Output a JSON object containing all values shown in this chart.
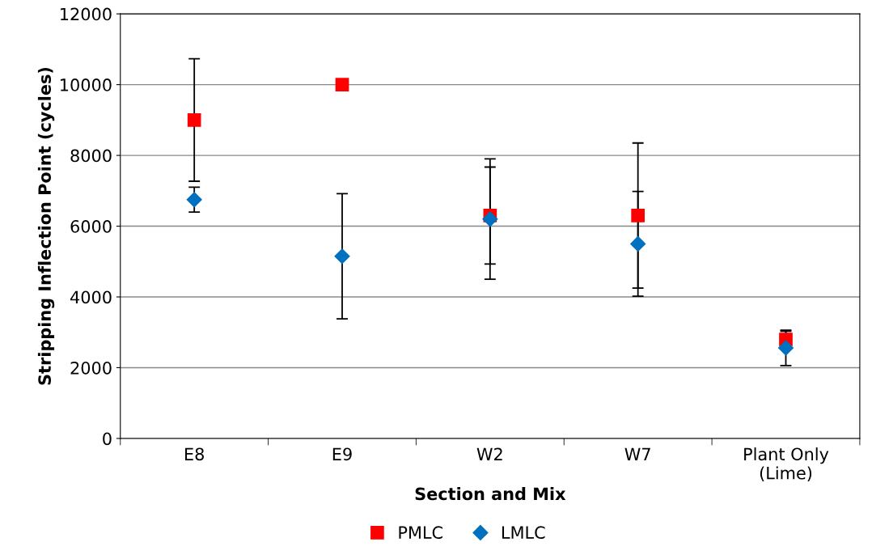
{
  "chart_data": {
    "type": "scatter",
    "xlabel": "Section and Mix",
    "ylabel": "Stripping Inflection Point (cycles)",
    "categories": [
      "E8",
      "E9",
      "W2",
      "W7",
      "Plant Only\n(Lime)"
    ],
    "series": [
      {
        "name": "PMLC",
        "color": "#ff0000",
        "marker": "square",
        "values": [
          9000,
          10000,
          6300,
          6300,
          2800
        ],
        "errors": [
          1730,
          null,
          1370,
          2050,
          230
        ]
      },
      {
        "name": "LMLC",
        "color": "#0070c0",
        "marker": "diamond",
        "values": [
          6750,
          5150,
          6200,
          5500,
          2560
        ],
        "errors": [
          350,
          1770,
          1700,
          1480,
          500
        ]
      }
    ],
    "ylim": [
      0,
      12000
    ],
    "yticks": [
      0,
      2000,
      4000,
      6000,
      8000,
      10000,
      12000
    ],
    "grid": "y",
    "legend": "bottom"
  }
}
